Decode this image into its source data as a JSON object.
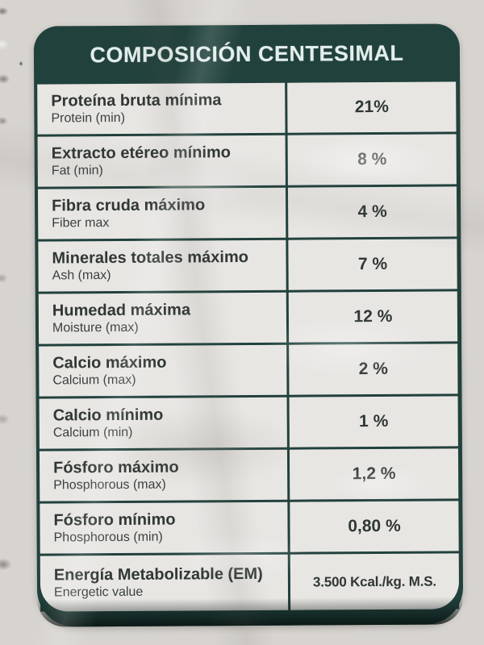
{
  "label": {
    "title": "COMPOSICIÓN CENTESIMAL",
    "rows": [
      {
        "name_es": "Proteína bruta mínima",
        "name_en": "Protein (min)",
        "value": "21%"
      },
      {
        "name_es": "Extracto etéreo mínimo",
        "name_en": "Fat (min)",
        "value": "8 %"
      },
      {
        "name_es": "Fibra cruda máximo",
        "name_en": "Fiber max",
        "value": "4 %"
      },
      {
        "name_es": "Minerales totales máximo",
        "name_en": "Ash (max)",
        "value": "7 %"
      },
      {
        "name_es": "Humedad máxima",
        "name_en": "Moisture (max)",
        "value": "12 %"
      },
      {
        "name_es": "Calcio máximo",
        "name_en": "Calcium (max)",
        "value": "2 %"
      },
      {
        "name_es": "Calcio mínimo",
        "name_en": "Calcium (min)",
        "value": "1 %"
      },
      {
        "name_es": "Fósforo máximo",
        "name_en": "Phosphorous (max)",
        "value": "1,2 %"
      },
      {
        "name_es": "Fósforo mínimo",
        "name_en": "Phosphorous (min)",
        "value": "0,80 %"
      },
      {
        "name_es": "Energía Metabolizable (EM)",
        "name_en": "Energetic value",
        "value": "3.500 Kcal./kg. M.S."
      }
    ],
    "colors": {
      "accent_teal": "#21413c",
      "paper": "#e8e6e3",
      "text": "#303734",
      "header_text": "#e3eeec"
    }
  }
}
